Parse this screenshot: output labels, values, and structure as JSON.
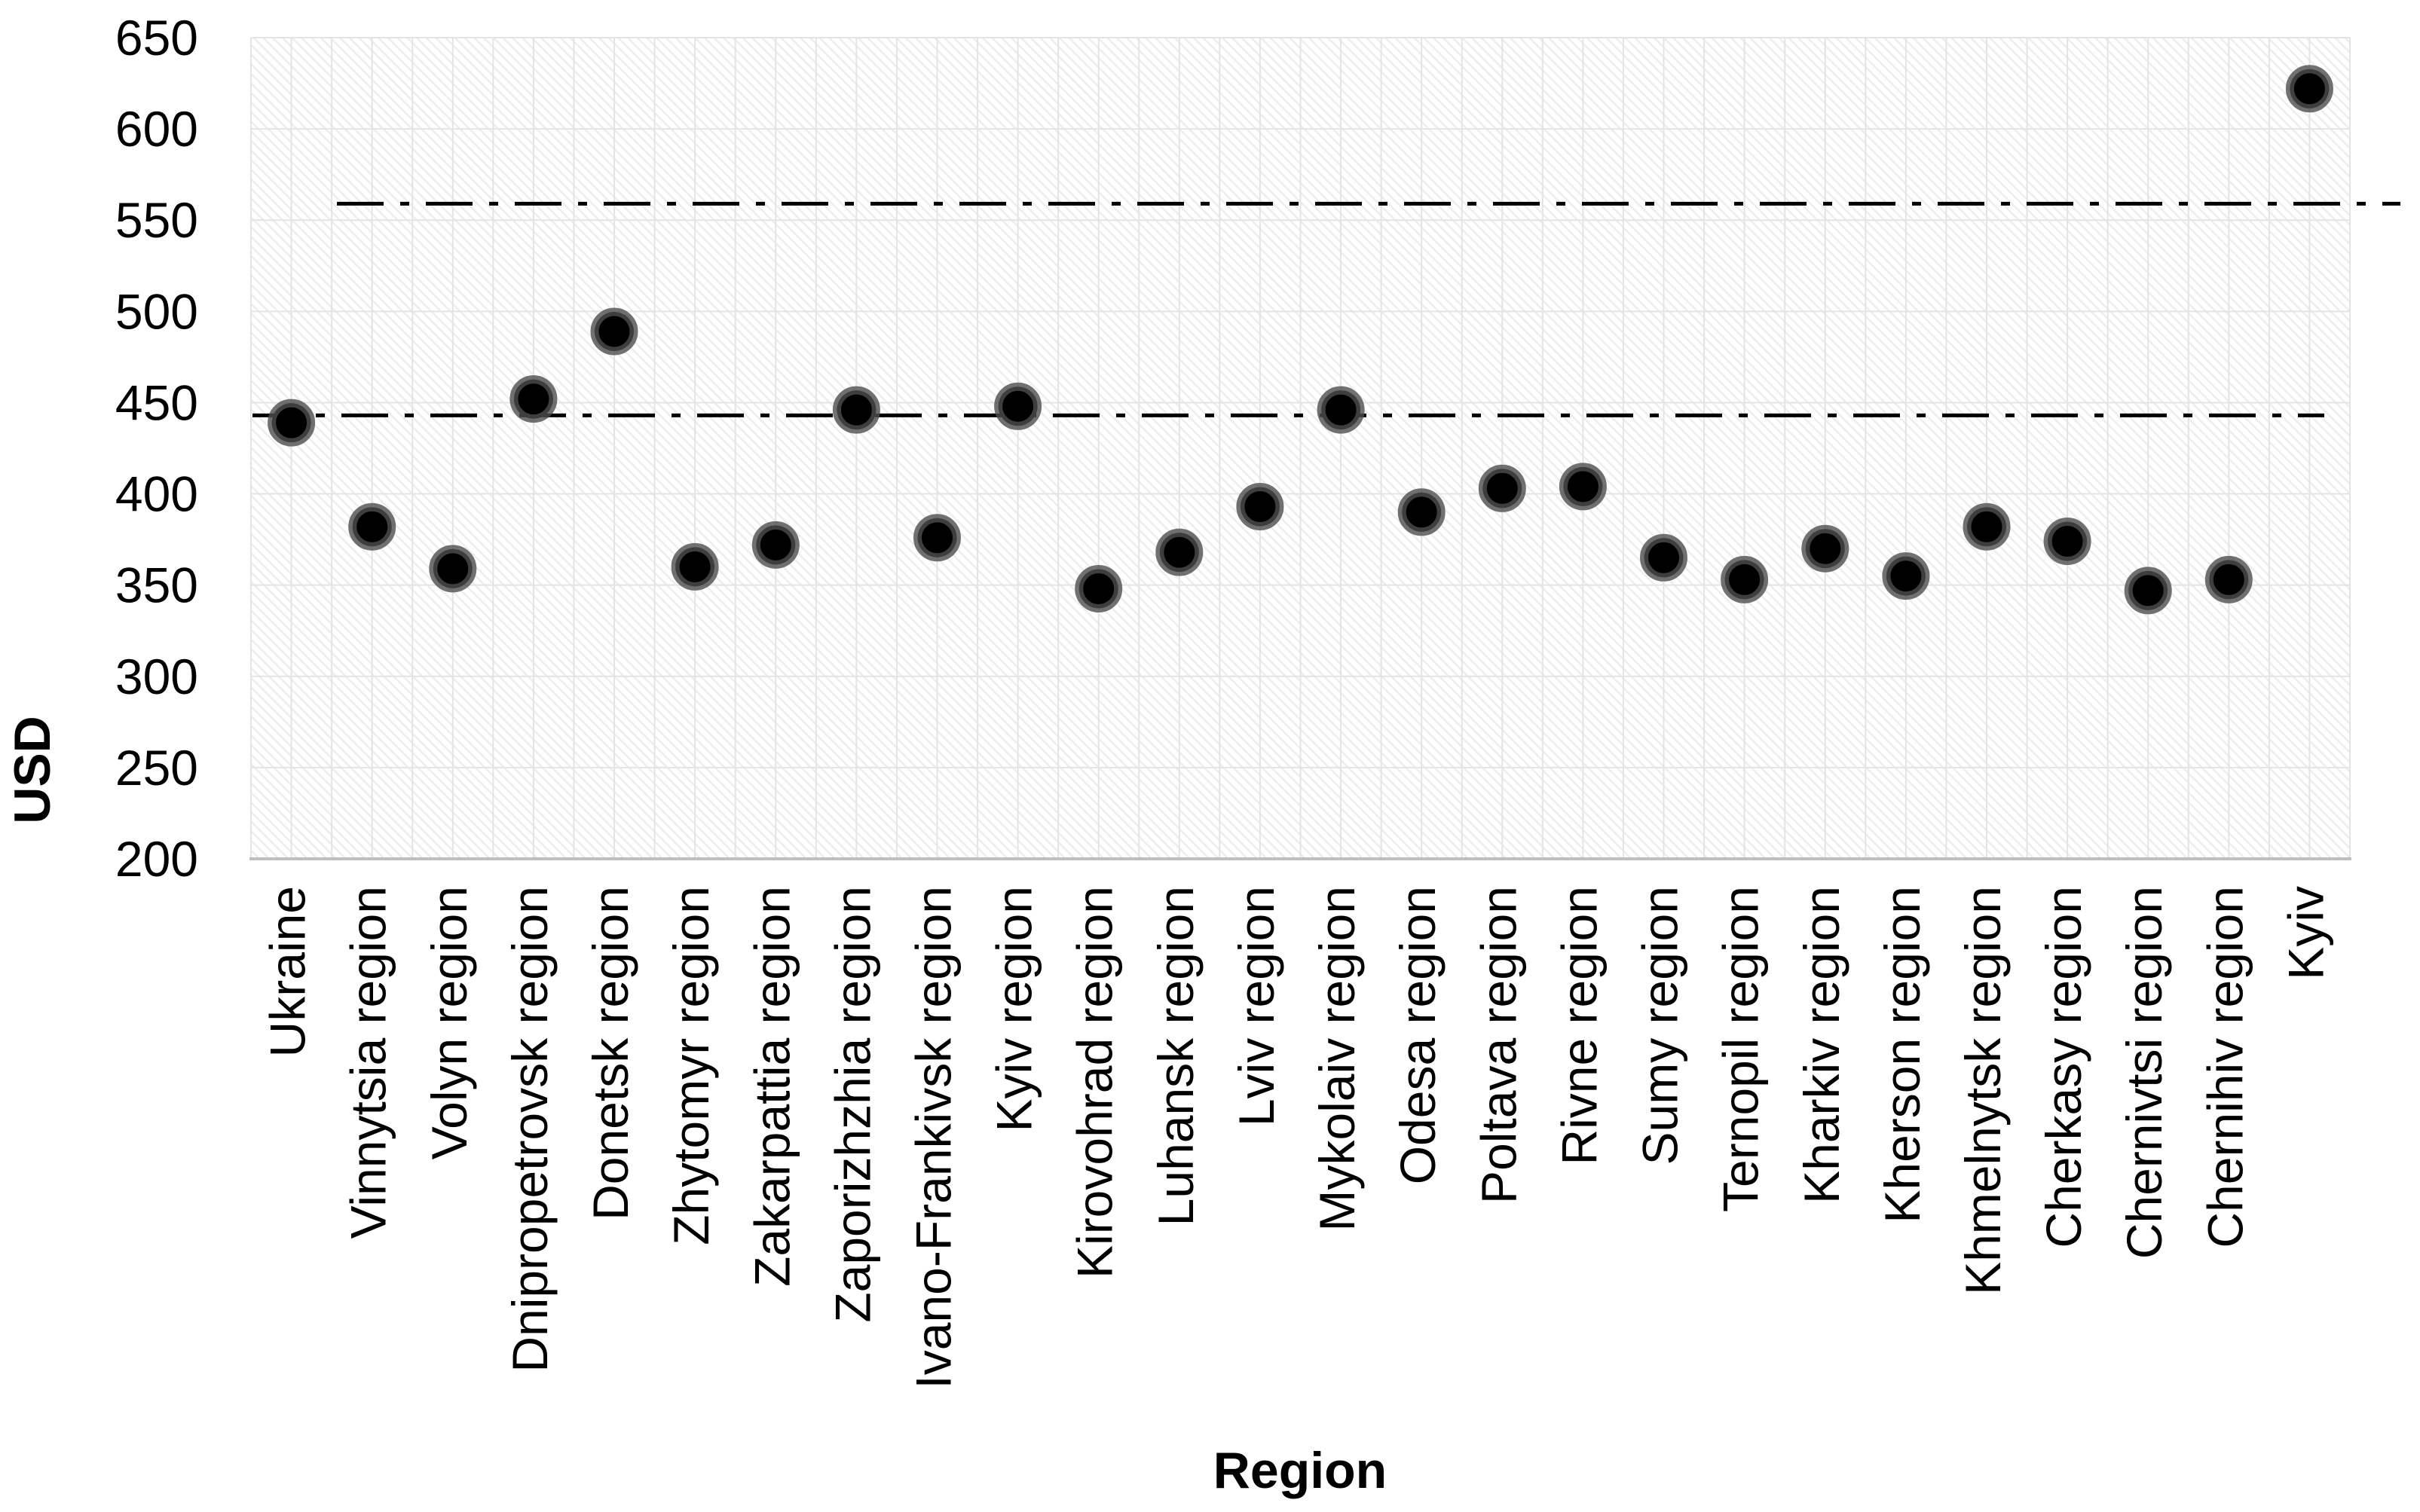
{
  "chart_data": {
    "type": "scatter",
    "title": "",
    "xlabel": "Region",
    "ylabel": "USD",
    "ylim": [
      200,
      650
    ],
    "ytick_step": 50,
    "grid": true,
    "legend": false,
    "categories": [
      "Ukraine",
      "Vinnytsia region",
      "Volyn region",
      "Dnipropetrovsk region",
      "Donetsk region",
      "Zhytomyr region",
      "Zakarpattia region",
      "Zaporizhzhia region",
      "Ivano-Frankivsk region",
      "Kyiv region",
      "Kirovohrad region",
      "Luhansk region",
      "Lviv region",
      "Mykolaiv region",
      "Odesa region",
      "Poltava region",
      "Rivne region",
      "Sumy region",
      "Ternopil region",
      "Kharkiv region",
      "Kherson region",
      "Khmelnytsk region",
      "Cherkasy region",
      "Chernivtsi region",
      "Chernihiv region",
      "Kyiv"
    ],
    "values": [
      439,
      382,
      359,
      452,
      489,
      360,
      372,
      446,
      376,
      448,
      348,
      368,
      393,
      446,
      390,
      403,
      404,
      365,
      353,
      370,
      355,
      382,
      374,
      347,
      353,
      622
    ],
    "reference_lines": [
      {
        "value": 559,
        "style": "dash-dot"
      },
      {
        "value": 443,
        "style": "dash-dot"
      }
    ],
    "colors": {
      "marker_fill": "#000000",
      "marker_ring": "#4d4d4d",
      "gridline": "#e4e4e4",
      "axis_line": "#bfbfbf",
      "reference_line": "#000000",
      "text": "#000000",
      "hatch": "#ededed",
      "plot_background": "#ffffff"
    }
  }
}
